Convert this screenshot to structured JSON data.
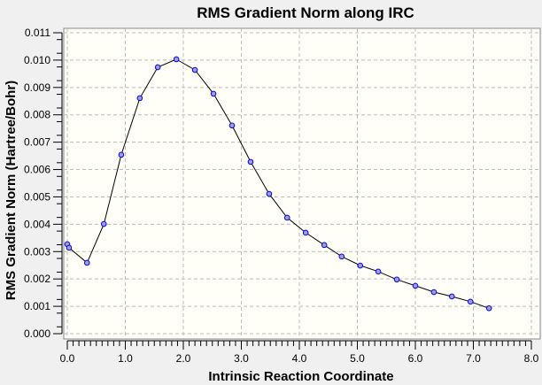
{
  "chart_data": {
    "type": "line",
    "title": "RMS Gradient Norm along IRC",
    "xlabel": "Intrinsic Reaction Coordinate",
    "ylabel": "RMS Gradient Norm (Hartree/Bohr)",
    "xlim": [
      0,
      8
    ],
    "ylim": [
      0,
      0.011
    ],
    "xticks": [
      "0.0",
      "1.0",
      "2.0",
      "3.0",
      "4.0",
      "5.0",
      "6.0",
      "7.0",
      "8.0"
    ],
    "yticks": [
      "0.000",
      "0.001",
      "0.002",
      "0.003",
      "0.004",
      "0.005",
      "0.006",
      "0.007",
      "0.008",
      "0.009",
      "0.010",
      "0.011"
    ],
    "grid": true,
    "colors": {
      "line": "#000000",
      "marker_edge": "#0000ff",
      "marker_fill": "#a0a0c8",
      "plot_bg": "#fffff7"
    },
    "x": [
      0.0,
      0.03,
      0.34,
      0.63,
      0.93,
      1.25,
      1.56,
      1.88,
      2.2,
      2.52,
      2.84,
      3.16,
      3.48,
      3.79,
      4.11,
      4.43,
      4.73,
      5.05,
      5.36,
      5.68,
      6.0,
      6.32,
      6.63,
      6.95,
      7.27
    ],
    "y": [
      0.00327,
      0.00314,
      0.00259,
      0.00401,
      0.00654,
      0.00861,
      0.00974,
      0.01003,
      0.00964,
      0.00877,
      0.00761,
      0.00628,
      0.00511,
      0.00424,
      0.00369,
      0.00324,
      0.00282,
      0.00249,
      0.00227,
      0.00198,
      0.00175,
      0.00152,
      0.00136,
      0.00117,
      0.00093
    ]
  }
}
